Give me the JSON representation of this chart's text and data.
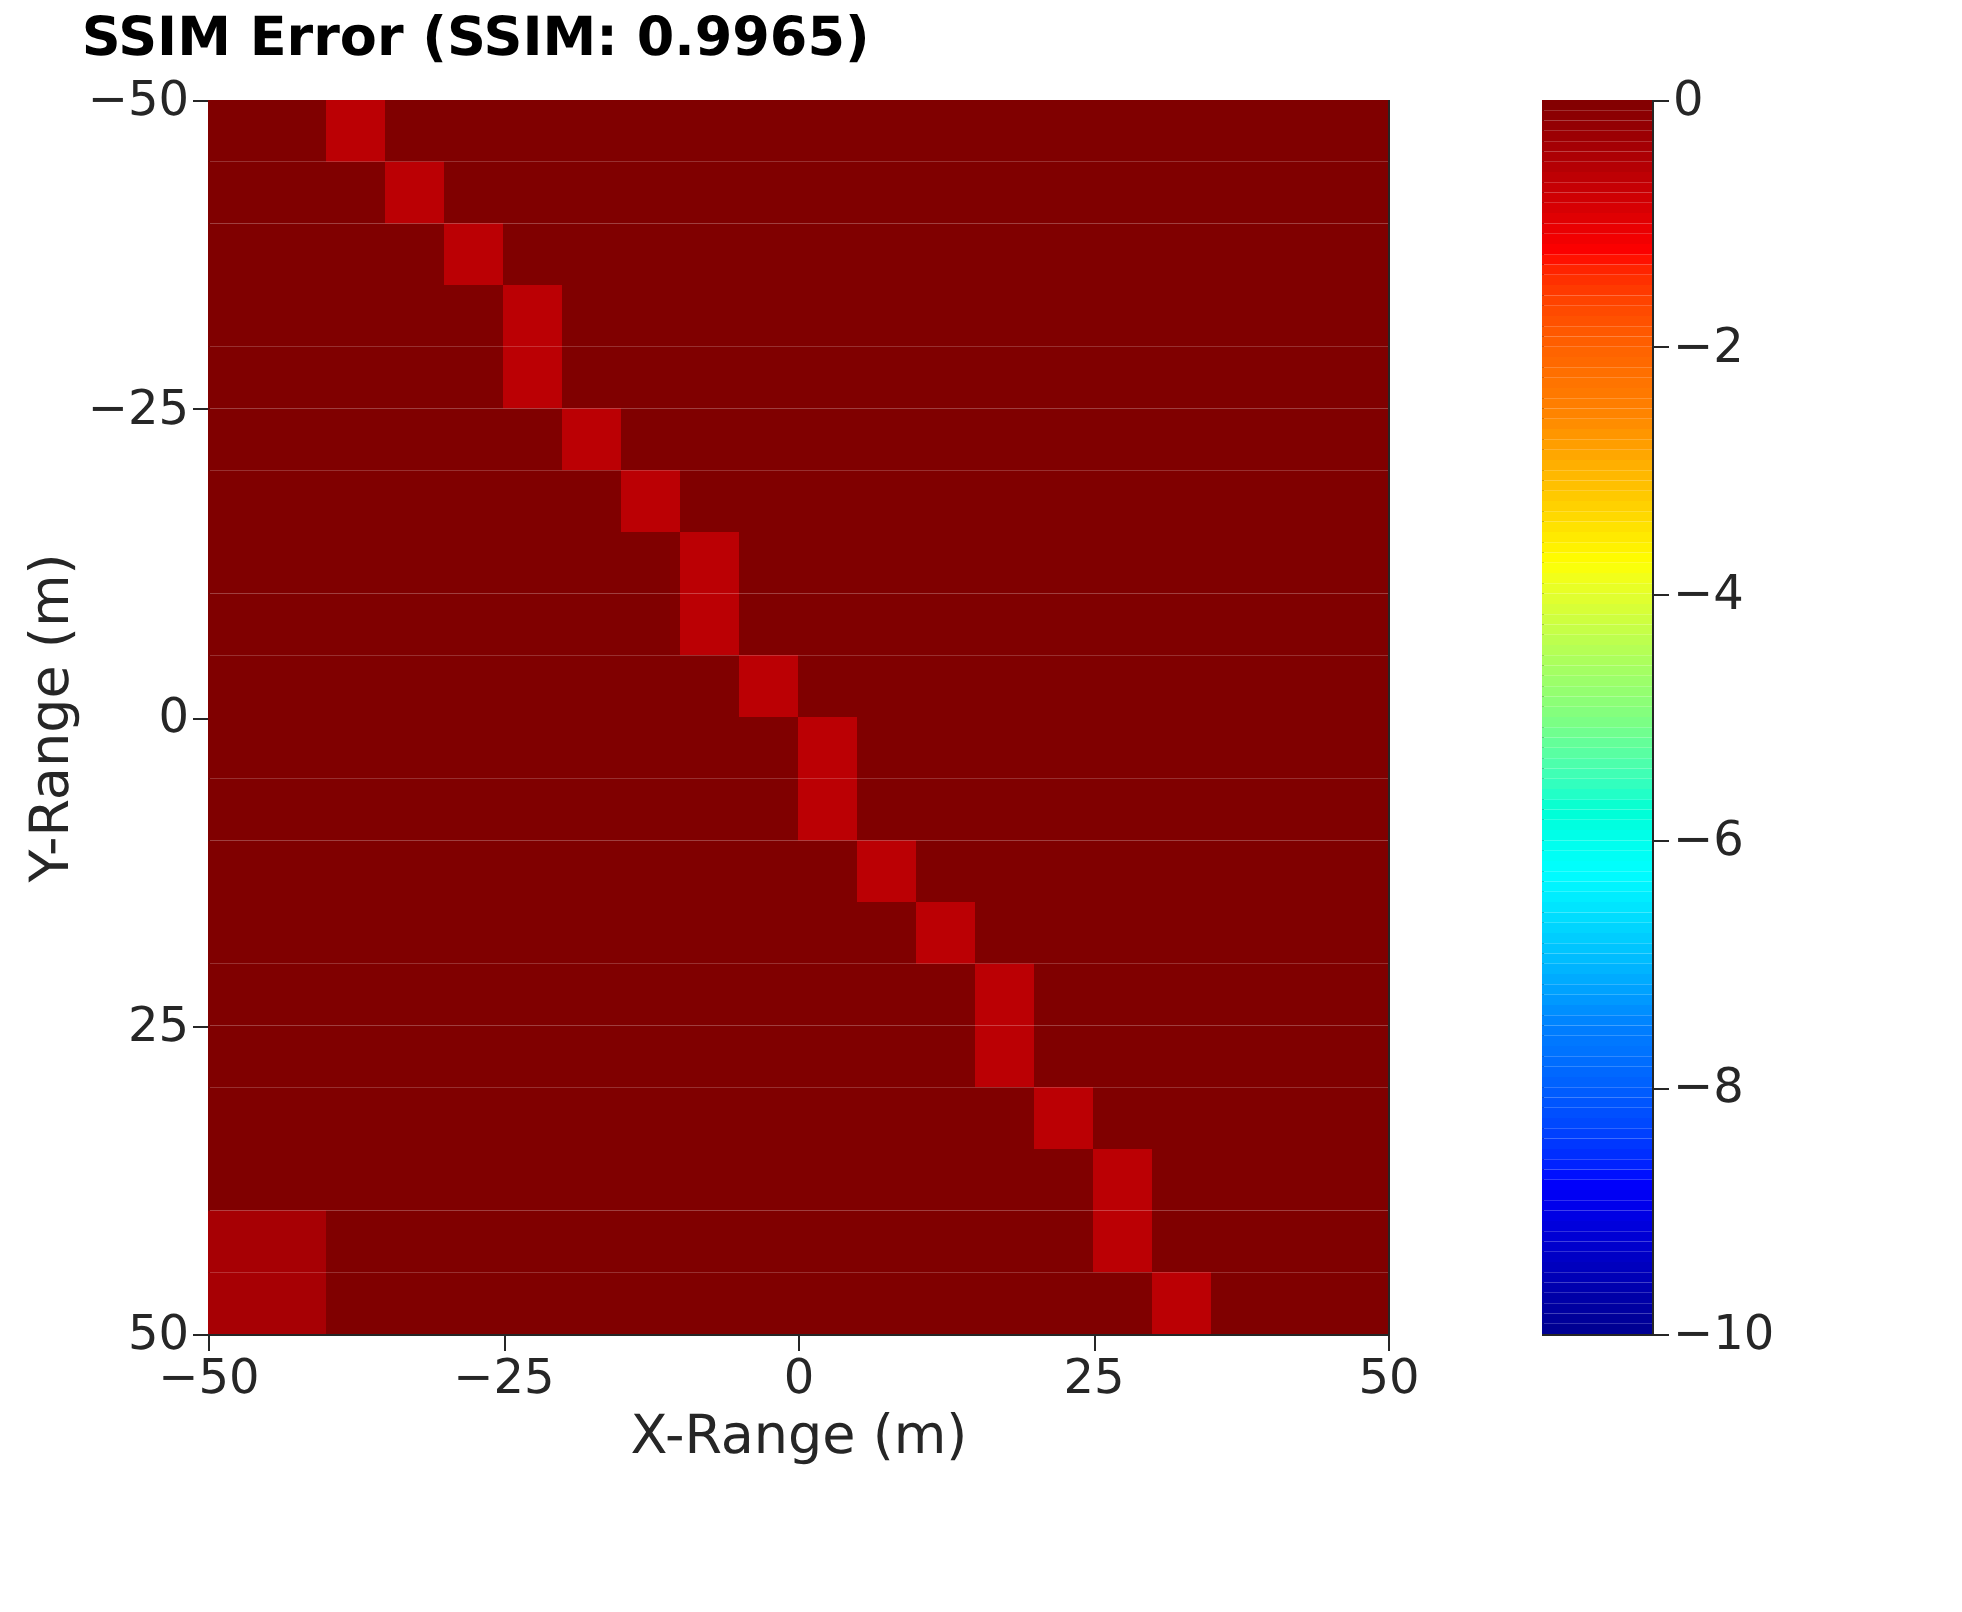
{
  "chart_data": {
    "type": "heatmap",
    "title": "SSIM Error (SSIM: 0.9965)",
    "xlabel": "X-Range (m)",
    "ylabel": "Y-Range (m)",
    "xlim": [
      -50,
      50
    ],
    "ylim": [
      50,
      -50
    ],
    "xticks": [
      -50,
      -25,
      0,
      25,
      50
    ],
    "yticks": [
      -50,
      -25,
      0,
      25,
      50
    ],
    "clim": [
      -10,
      0
    ],
    "cticks": [
      0,
      -2,
      -4,
      -6,
      -8,
      -10
    ],
    "cells": [
      [
        0,
        0,
        -0.6,
        0,
        0,
        0,
        0,
        0,
        0,
        0,
        0,
        0,
        0,
        0,
        0,
        0,
        0,
        0,
        0,
        0
      ],
      [
        0,
        0,
        0,
        -0.6,
        0,
        0,
        0,
        0,
        0,
        0,
        0,
        0,
        0,
        0,
        0,
        0,
        0,
        0,
        0,
        0
      ],
      [
        0,
        0,
        0,
        0,
        -0.6,
        0,
        0,
        0,
        0,
        0,
        0,
        0,
        0,
        0,
        0,
        0,
        0,
        0,
        0,
        0
      ],
      [
        0,
        0,
        0,
        0,
        0,
        -0.6,
        0,
        0,
        0,
        0,
        0,
        0,
        0,
        0,
        0,
        0,
        0,
        0,
        0,
        0
      ],
      [
        0,
        0,
        0,
        0,
        0,
        -0.6,
        0,
        0,
        0,
        0,
        0,
        0,
        0,
        0,
        0,
        0,
        0,
        0,
        0,
        0
      ],
      [
        0,
        0,
        0,
        0,
        0,
        0,
        -0.6,
        0,
        0,
        0,
        0,
        0,
        0,
        0,
        0,
        0,
        0,
        0,
        0,
        0
      ],
      [
        0,
        0,
        0,
        0,
        0,
        0,
        0,
        -0.6,
        0,
        0,
        0,
        0,
        0,
        0,
        0,
        0,
        0,
        0,
        0,
        0
      ],
      [
        0,
        0,
        0,
        0,
        0,
        0,
        0,
        0,
        -0.6,
        0,
        0,
        0,
        0,
        0,
        0,
        0,
        0,
        0,
        0,
        0
      ],
      [
        0,
        0,
        0,
        0,
        0,
        0,
        0,
        0,
        -0.6,
        0,
        0,
        0,
        0,
        0,
        0,
        0,
        0,
        0,
        0,
        0
      ],
      [
        0,
        0,
        0,
        0,
        0,
        0,
        0,
        0,
        0,
        -0.6,
        0,
        0,
        0,
        0,
        0,
        0,
        0,
        0,
        0,
        0
      ],
      [
        0,
        0,
        0,
        0,
        0,
        0,
        0,
        0,
        0,
        0,
        -0.6,
        0,
        0,
        0,
        0,
        0,
        0,
        0,
        0,
        0
      ],
      [
        0,
        0,
        0,
        0,
        0,
        0,
        0,
        0,
        0,
        0,
        -0.6,
        0,
        0,
        0,
        0,
        0,
        0,
        0,
        0,
        0
      ],
      [
        0,
        0,
        0,
        0,
        0,
        0,
        0,
        0,
        0,
        0,
        0,
        -0.6,
        0,
        0,
        0,
        0,
        0,
        0,
        0,
        0
      ],
      [
        0,
        0,
        0,
        0,
        0,
        0,
        0,
        0,
        0,
        0,
        0,
        0,
        -0.6,
        0,
        0,
        0,
        0,
        0,
        0,
        0
      ],
      [
        0,
        0,
        0,
        0,
        0,
        0,
        0,
        0,
        0,
        0,
        0,
        0,
        0,
        -0.6,
        0,
        0,
        0,
        0,
        0,
        0
      ],
      [
        0,
        0,
        0,
        0,
        0,
        0,
        0,
        0,
        0,
        0,
        0,
        0,
        0,
        -0.6,
        0,
        0,
        0,
        0,
        0,
        0
      ],
      [
        0,
        0,
        0,
        0,
        0,
        0,
        0,
        0,
        0,
        0,
        0,
        0,
        0,
        0,
        -0.6,
        0,
        0,
        0,
        0,
        0
      ],
      [
        0,
        0,
        0,
        0,
        0,
        0,
        0,
        0,
        0,
        0,
        0,
        0,
        0,
        0,
        0,
        -0.6,
        0,
        0,
        0,
        0
      ],
      [
        -0.4,
        -0.4,
        0,
        0,
        0,
        0,
        0,
        0,
        0,
        0,
        0,
        0,
        0,
        0,
        0,
        -0.6,
        0,
        0,
        0,
        0
      ],
      [
        -0.4,
        -0.4,
        0,
        0,
        0,
        0,
        0,
        0,
        0,
        0,
        0,
        0,
        0,
        0,
        0,
        0,
        -0.6,
        0,
        0,
        0
      ]
    ]
  }
}
